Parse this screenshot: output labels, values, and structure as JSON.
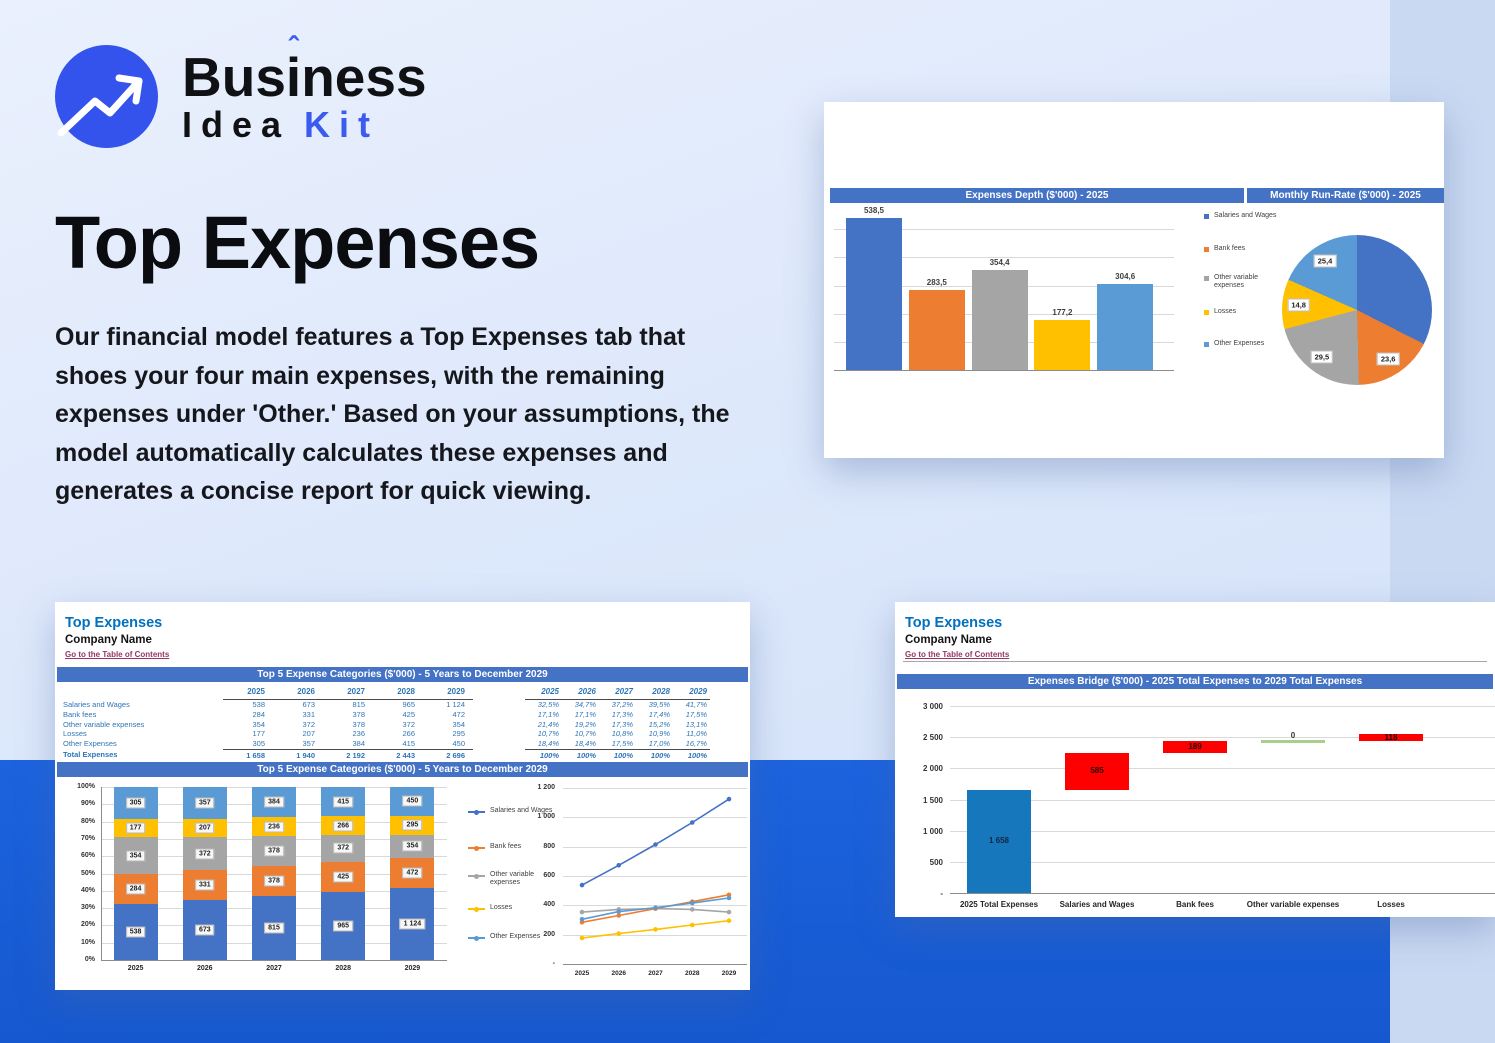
{
  "brand": {
    "word_pre": "Bus",
    "word_accent_letter": "i",
    "word_post": "ness",
    "accent_mark": "ˆ",
    "line2_first": "Idea",
    "line2_second": "Kit",
    "logo_icon": "trend-arrow-icon"
  },
  "hero": {
    "title": "Top Expenses",
    "body": "Our financial model features a Top Expenses tab that shoes your four main expenses, with the remaining expenses under 'Other.' Based on your assumptions, the model automatically calculates these expenses and generates a concise report for quick viewing."
  },
  "legend_items": [
    "Salaries and Wages",
    "Bank fees",
    "Other variable expenses",
    "Losses",
    "Other Expenses"
  ],
  "series_colors": [
    "#4472c4",
    "#ed7d31",
    "#a5a5a5",
    "#ffc000",
    "#5b9bd5"
  ],
  "depth_card": {
    "bar_header": "Expenses Depth ($'000) - 2025",
    "pie_header": "Monthly Run-Rate ($'000) - 2025"
  },
  "report_card": {
    "sheet_title": "Top Expenses",
    "company": "Company Name",
    "toc_link": "Go to the Table of Contents",
    "table_header": "Top 5 Expense Categories ($'000) - 5 Years to December 2029",
    "chart_header": "Top 5 Expense Categories ($'000) - 5 Years to December 2029",
    "years": [
      "2025",
      "2026",
      "2027",
      "2028",
      "2029"
    ],
    "rows": [
      {
        "label": "Salaries and Wages",
        "values": [
          "538",
          "673",
          "815",
          "965",
          "1 124"
        ],
        "pcts": [
          "32,5%",
          "34,7%",
          "37,2%",
          "39,5%",
          "41,7%"
        ]
      },
      {
        "label": "Bank fees",
        "values": [
          "284",
          "331",
          "378",
          "425",
          "472"
        ],
        "pcts": [
          "17,1%",
          "17,1%",
          "17,3%",
          "17,4%",
          "17,5%"
        ]
      },
      {
        "label": "Other variable expenses",
        "values": [
          "354",
          "372",
          "378",
          "372",
          "354"
        ],
        "pcts": [
          "21,4%",
          "19,2%",
          "17,3%",
          "15,2%",
          "13,1%"
        ]
      },
      {
        "label": "Losses",
        "values": [
          "177",
          "207",
          "236",
          "266",
          "295"
        ],
        "pcts": [
          "10,7%",
          "10,7%",
          "10,8%",
          "10,9%",
          "11,0%"
        ]
      },
      {
        "label": "Other Expenses",
        "values": [
          "305",
          "357",
          "384",
          "415",
          "450"
        ],
        "pcts": [
          "18,4%",
          "18,4%",
          "17,5%",
          "17,0%",
          "16,7%"
        ]
      }
    ],
    "total": {
      "label": "Total Expenses",
      "values": [
        "1 658",
        "1 940",
        "2 192",
        "2 443",
        "2 696"
      ],
      "pcts": [
        "100%",
        "100%",
        "100%",
        "100%",
        "100%"
      ]
    }
  },
  "bridge_card": {
    "sheet_title": "Top Expenses",
    "company": "Company Name",
    "toc_link": "Go to the Table of Contents",
    "chart_header": "Expenses Bridge ($'000) - 2025 Total Expenses to 2029 Total Expenses"
  },
  "chart_data": [
    {
      "id": "depth-bar",
      "type": "bar",
      "title": "Expenses Depth ($'000) - 2025",
      "categories": [
        "Salaries and Wages",
        "Bank fees",
        "Other variable expenses",
        "Losses",
        "Other Expenses"
      ],
      "values": [
        538.5,
        283.5,
        354.4,
        177.2,
        304.6
      ],
      "labels": [
        "538,5",
        "283,5",
        "354,4",
        "177,2",
        "304,6"
      ],
      "ylim": [
        0,
        600
      ],
      "grid_step": 100,
      "legend_position": "right",
      "grid": true
    },
    {
      "id": "runrate-pie",
      "type": "pie",
      "title": "Monthly Run-Rate ($'000) - 2025",
      "slices": [
        {
          "name": "Salaries and Wages",
          "share_pct": 32.5,
          "label": ""
        },
        {
          "name": "Bank fees",
          "share_pct": 17.1,
          "label": "23,6"
        },
        {
          "name": "Other variable expenses",
          "share_pct": 21.3,
          "label": "29,5"
        },
        {
          "name": "Losses",
          "share_pct": 10.7,
          "label": "14,8"
        },
        {
          "name": "Other Expenses",
          "share_pct": 18.4,
          "label": "25,4"
        }
      ]
    },
    {
      "id": "stacked-100",
      "type": "bar",
      "subtype": "stacked-100",
      "title": "Top 5 Expense Categories ($'000) - 5 Years to December 2029",
      "categories": [
        "2025",
        "2026",
        "2027",
        "2028",
        "2029"
      ],
      "yticks": [
        "0%",
        "10%",
        "20%",
        "30%",
        "40%",
        "50%",
        "60%",
        "70%",
        "80%",
        "90%",
        "100%"
      ],
      "series": [
        {
          "name": "Salaries and Wages",
          "labels": [
            "538",
            "673",
            "815",
            "965",
            "1 124"
          ],
          "pcts": [
            32.5,
            34.7,
            37.2,
            39.5,
            41.7
          ]
        },
        {
          "name": "Bank fees",
          "labels": [
            "284",
            "331",
            "378",
            "425",
            "472"
          ],
          "pcts": [
            17.1,
            17.1,
            17.3,
            17.4,
            17.5
          ]
        },
        {
          "name": "Other variable expenses",
          "labels": [
            "354",
            "372",
            "378",
            "372",
            "354"
          ],
          "pcts": [
            21.4,
            19.2,
            17.3,
            15.2,
            13.1
          ]
        },
        {
          "name": "Losses",
          "labels": [
            "177",
            "207",
            "236",
            "266",
            "295"
          ],
          "pcts": [
            10.7,
            10.7,
            10.8,
            10.9,
            11.0
          ]
        },
        {
          "name": "Other Expenses",
          "labels": [
            "305",
            "357",
            "384",
            "415",
            "450"
          ],
          "pcts": [
            18.4,
            18.4,
            17.5,
            17.0,
            16.7
          ]
        }
      ]
    },
    {
      "id": "trend-lines",
      "type": "line",
      "categories": [
        "2025",
        "2026",
        "2027",
        "2028",
        "2029"
      ],
      "ylim": [
        0,
        1200
      ],
      "yticks": [
        "-",
        "200",
        "400",
        "600",
        "800",
        "1 000",
        "1 200"
      ],
      "series": [
        {
          "name": "Salaries and Wages",
          "values": [
            538,
            673,
            815,
            965,
            1124
          ]
        },
        {
          "name": "Bank fees",
          "values": [
            284,
            331,
            378,
            425,
            472
          ]
        },
        {
          "name": "Other variable expenses",
          "values": [
            354,
            372,
            378,
            372,
            354
          ]
        },
        {
          "name": "Losses",
          "values": [
            177,
            207,
            236,
            266,
            295
          ]
        },
        {
          "name": "Other Expenses",
          "values": [
            305,
            357,
            384,
            415,
            450
          ]
        }
      ]
    },
    {
      "id": "bridge-waterfall",
      "type": "bar",
      "subtype": "waterfall",
      "title": "Expenses Bridge ($'000) - 2025 Total Expenses to 2029 Total Expenses",
      "categories": [
        "2025 Total Expenses",
        "Salaries and Wages",
        "Bank fees",
        "Other variable expenses",
        "Losses"
      ],
      "ylim": [
        0,
        3000
      ],
      "yticks": [
        "-",
        "500",
        "1 000",
        "1 500",
        "2 000",
        "2 500",
        "3 000"
      ],
      "bars": [
        {
          "label": "1 658",
          "from": 0,
          "to": 1658,
          "color": "#1777bc",
          "label_color": "#13263f"
        },
        {
          "label": "585",
          "from": 1658,
          "to": 2243,
          "color": "#fe0000",
          "label_color": "#1c0a0a"
        },
        {
          "label": "189",
          "from": 2243,
          "to": 2432,
          "color": "#fe0000",
          "label_color": "#1c0a0a"
        },
        {
          "label": "0",
          "from": 2432,
          "to": 2432,
          "color": "#a9ce8e",
          "label_color": "#333333"
        },
        {
          "label": "118",
          "from": 2432,
          "to": 2550,
          "color": "#fe0000",
          "label_color": "#1c0a0a"
        }
      ]
    }
  ]
}
